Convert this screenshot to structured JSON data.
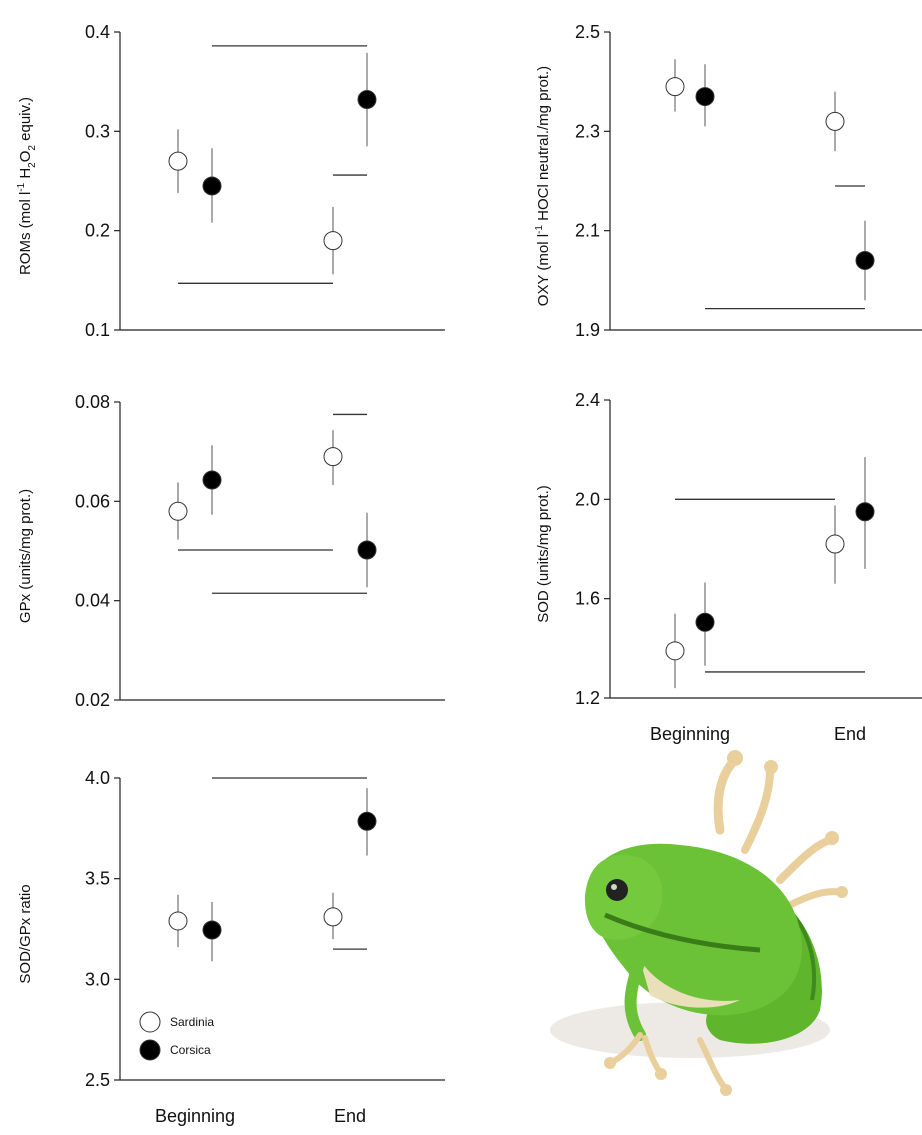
{
  "chart_data": [
    {
      "type": "scatter",
      "id": "roms",
      "ylabel_parts": [
        "ROMs (mol l",
        "-1",
        " H",
        "2",
        "O",
        "2",
        " equiv.)"
      ],
      "yticks": [
        "0.1",
        "0.2",
        "0.3",
        "0.4"
      ],
      "ylim": [
        0.1,
        0.4
      ],
      "categories": [
        "Beginning",
        "End"
      ],
      "show_xlabels": false,
      "series": [
        {
          "name": "Sardinia",
          "fill": "white",
          "values": [
            0.27,
            0.19
          ],
          "err_low": [
            0.238,
            0.156
          ],
          "err_high": [
            0.302,
            0.224
          ]
        },
        {
          "name": "Corsica",
          "fill": "black",
          "values": [
            0.245,
            0.332
          ],
          "err_low": [
            0.208,
            0.285
          ],
          "err_high": [
            0.283,
            0.379
          ]
        }
      ],
      "sig_lines": [
        {
          "x_from": [
            0,
            1
          ],
          "x_to": [
            1,
            1
          ],
          "y": 0.386
        },
        {
          "x_from": [
            1,
            0
          ],
          "x_to": [
            1,
            1
          ],
          "y": 0.256
        },
        {
          "x_from": [
            0,
            0
          ],
          "x_to": [
            1,
            0
          ],
          "y": 0.147
        }
      ]
    },
    {
      "type": "scatter",
      "id": "oxy",
      "ylabel_parts": [
        "OXY (mol l",
        "-1",
        " HOCl neutral./mg prot.)"
      ],
      "yticks": [
        "1.9",
        "2.1",
        "2.3",
        "2.5"
      ],
      "ylim": [
        1.9,
        2.5
      ],
      "categories": [
        "Beginning",
        "End"
      ],
      "show_xlabels": false,
      "series": [
        {
          "name": "Sardinia",
          "fill": "white",
          "values": [
            2.39,
            2.32
          ],
          "err_low": [
            2.34,
            2.26
          ],
          "err_high": [
            2.445,
            2.38
          ]
        },
        {
          "name": "Corsica",
          "fill": "black",
          "values": [
            2.37,
            2.04
          ],
          "err_low": [
            2.31,
            1.96
          ],
          "err_high": [
            2.435,
            2.12
          ]
        }
      ],
      "sig_lines": [
        {
          "x_from": [
            1,
            0
          ],
          "x_to": [
            1,
            1
          ],
          "y": 2.19
        },
        {
          "x_from": [
            0,
            1
          ],
          "x_to": [
            1,
            1
          ],
          "y": 1.943
        }
      ]
    },
    {
      "type": "scatter",
      "id": "gpx",
      "ylabel_parts": [
        "GPx (units/mg prot.)"
      ],
      "yticks": [
        "0.02",
        "0.04",
        "0.06",
        "0.08"
      ],
      "ylim": [
        0.02,
        0.08
      ],
      "categories": [
        "Beginning",
        "End"
      ],
      "show_xlabels": false,
      "series": [
        {
          "name": "Sardinia",
          "fill": "white",
          "values": [
            0.058,
            0.069
          ],
          "err_low": [
            0.0523,
            0.0633
          ],
          "err_high": [
            0.0638,
            0.0743
          ]
        },
        {
          "name": "Corsica",
          "fill": "black",
          "values": [
            0.0643,
            0.0502
          ],
          "err_low": [
            0.0573,
            0.0427
          ],
          "err_high": [
            0.0713,
            0.0577
          ]
        }
      ],
      "sig_lines": [
        {
          "x_from": [
            1,
            0
          ],
          "x_to": [
            1,
            1
          ],
          "y": 0.0775
        },
        {
          "x_from": [
            0,
            0
          ],
          "x_to": [
            1,
            0
          ],
          "y": 0.0502
        },
        {
          "x_from": [
            0,
            1
          ],
          "x_to": [
            1,
            1
          ],
          "y": 0.0415
        }
      ]
    },
    {
      "type": "scatter",
      "id": "sod",
      "ylabel_parts": [
        "SOD (units/mg prot.)"
      ],
      "yticks": [
        "1.2",
        "1.6",
        "2.0",
        "2.4"
      ],
      "ylim": [
        1.2,
        2.4
      ],
      "categories": [
        "Beginning",
        "End"
      ],
      "show_xlabels": true,
      "series": [
        {
          "name": "Sardinia",
          "fill": "white",
          "values": [
            1.39,
            1.82
          ],
          "err_low": [
            1.24,
            1.66
          ],
          "err_high": [
            1.54,
            1.975
          ]
        },
        {
          "name": "Corsica",
          "fill": "black",
          "values": [
            1.505,
            1.95
          ],
          "err_low": [
            1.33,
            1.72
          ],
          "err_high": [
            1.665,
            2.17
          ]
        }
      ],
      "sig_lines": [
        {
          "x_from": [
            0,
            0
          ],
          "x_to": [
            1,
            0
          ],
          "y": 2.0
        },
        {
          "x_from": [
            0,
            1
          ],
          "x_to": [
            1,
            1
          ],
          "y": 1.305
        }
      ]
    },
    {
      "type": "scatter",
      "id": "ratio",
      "ylabel_parts": [
        "SOD/GPx ratio"
      ],
      "yticks": [
        "2.5",
        "3.0",
        "3.5",
        "4.0"
      ],
      "ylim": [
        2.5,
        4.0
      ],
      "categories": [
        "Beginning",
        "End"
      ],
      "show_xlabels": true,
      "legend": {
        "position": "bottom-left",
        "entries": [
          "Sardinia",
          "Corsica"
        ]
      },
      "series": [
        {
          "name": "Sardinia",
          "fill": "white",
          "values": [
            3.29,
            3.31
          ],
          "err_low": [
            3.16,
            3.2
          ],
          "err_high": [
            3.42,
            3.43
          ]
        },
        {
          "name": "Corsica",
          "fill": "black",
          "values": [
            3.245,
            3.785
          ],
          "err_low": [
            3.09,
            3.615
          ],
          "err_high": [
            3.385,
            3.95
          ]
        }
      ],
      "sig_lines": [
        {
          "x_from": [
            0,
            1
          ],
          "x_to": [
            1,
            1
          ],
          "y": 4.0
        },
        {
          "x_from": [
            1,
            0
          ],
          "x_to": [
            1,
            1
          ],
          "y": 3.15
        }
      ]
    }
  ],
  "photo": {
    "subject": "frog-photo",
    "colors": {
      "body": "#6cc236",
      "dark": "#3f8a1c",
      "belly": "#e9dfb8",
      "toe": "#e8cf9c"
    }
  }
}
